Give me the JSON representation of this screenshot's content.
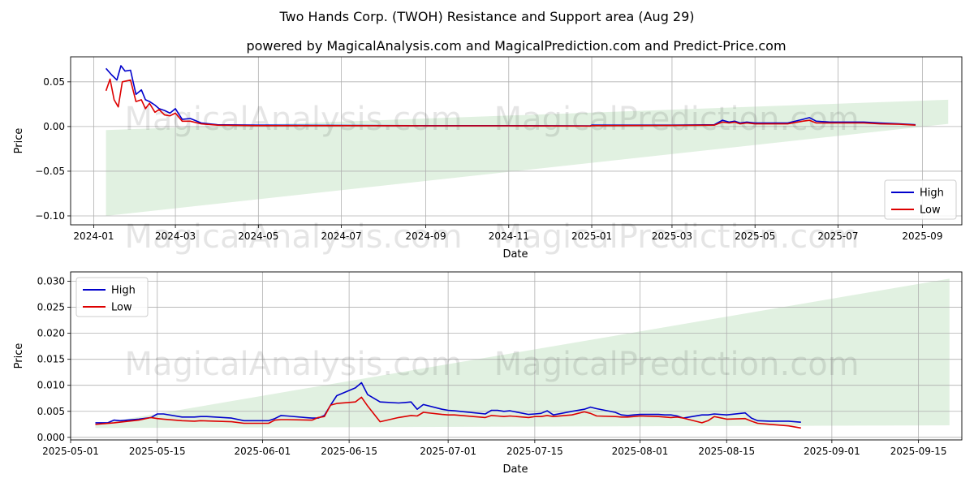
{
  "title": "Two Hands Corp. (TWOH) Resistance and Support area (Aug 29)",
  "subtitle": "powered by MagicalAnalysis.com and MagicalPrediction.com and Predict-Price.com",
  "watermarks": [
    "MagicalAnalysis.com",
    "MagicalPrediction.com"
  ],
  "colors": {
    "high": "#0000cc",
    "low": "#dd0000",
    "band": "#c8e6c9",
    "grid": "#b0b0b0"
  },
  "chart_data": [
    {
      "type": "line",
      "xlabel": "Date",
      "ylabel": "Price",
      "xlim": [
        "2023-12-15",
        "2025-09-30"
      ],
      "ylim": [
        -0.11,
        0.078
      ],
      "x_ticks": [
        "2024-01-01",
        "2024-03-01",
        "2024-05-01",
        "2024-07-01",
        "2024-09-01",
        "2024-11-01",
        "2025-01-01",
        "2025-03-01",
        "2025-05-01",
        "2025-07-01",
        "2025-09-01"
      ],
      "x_tick_labels": [
        "2024-01",
        "2024-03",
        "2024-05",
        "2024-07",
        "2024-09",
        "2024-11",
        "2025-01",
        "2025-03",
        "2025-05",
        "2025-07",
        "2025-09"
      ],
      "y_ticks": [
        -0.1,
        -0.05,
        0.0,
        0.05
      ],
      "y_tick_labels": [
        "−0.10",
        "−0.05",
        "0.00",
        "0.05"
      ],
      "grid": true,
      "legend_position": "bottom-right",
      "band": {
        "x": [
          "2024-01-10",
          "2025-09-20"
        ],
        "upper": [
          -0.004,
          0.03
        ],
        "lower": [
          -0.1,
          0.003
        ]
      },
      "series": [
        {
          "name": "High",
          "x": [
            "2024-01-10",
            "2024-01-14",
            "2024-01-18",
            "2024-01-21",
            "2024-01-24",
            "2024-01-28",
            "2024-02-01",
            "2024-02-05",
            "2024-02-08",
            "2024-02-11",
            "2024-02-15",
            "2024-02-18",
            "2024-02-22",
            "2024-02-26",
            "2024-03-01",
            "2024-03-06",
            "2024-03-12",
            "2024-03-20",
            "2024-04-01",
            "2024-05-01",
            "2024-07-01",
            "2024-09-01",
            "2024-11-01",
            "2024-12-31",
            "2025-01-01",
            "2025-03-01",
            "2025-04-01",
            "2025-04-07",
            "2025-04-12",
            "2025-04-16",
            "2025-04-20",
            "2025-04-25",
            "2025-05-01",
            "2025-05-15",
            "2025-05-25",
            "2025-06-05",
            "2025-06-10",
            "2025-06-15",
            "2025-06-25",
            "2025-07-10",
            "2025-07-20",
            "2025-08-01",
            "2025-08-15",
            "2025-08-27"
          ],
          "values": [
            0.065,
            0.058,
            0.052,
            0.068,
            0.062,
            0.063,
            0.036,
            0.041,
            0.03,
            0.028,
            0.024,
            0.02,
            0.018,
            0.015,
            0.02,
            0.008,
            0.009,
            0.004,
            0.002,
            0.0015,
            0.0012,
            0.001,
            0.001,
            0.0008,
            0.0015,
            0.0015,
            0.002,
            0.007,
            0.005,
            0.006,
            0.004,
            0.005,
            0.004,
            0.004,
            0.004,
            0.008,
            0.01,
            0.006,
            0.005,
            0.005,
            0.005,
            0.004,
            0.003,
            0.002
          ]
        },
        {
          "name": "Low",
          "x": [
            "2024-01-10",
            "2024-01-13",
            "2024-01-16",
            "2024-01-19",
            "2024-01-22",
            "2024-01-28",
            "2024-02-01",
            "2024-02-05",
            "2024-02-08",
            "2024-02-11",
            "2024-02-15",
            "2024-02-18",
            "2024-02-22",
            "2024-02-26",
            "2024-03-01",
            "2024-03-06",
            "2024-03-12",
            "2024-03-20",
            "2024-04-01",
            "2024-05-01",
            "2024-07-01",
            "2024-09-01",
            "2024-11-01",
            "2024-12-31",
            "2025-01-01",
            "2025-03-01",
            "2025-04-01",
            "2025-04-07",
            "2025-04-12",
            "2025-04-16",
            "2025-04-20",
            "2025-04-25",
            "2025-05-01",
            "2025-05-15",
            "2025-05-25",
            "2025-06-05",
            "2025-06-10",
            "2025-06-15",
            "2025-06-25",
            "2025-07-10",
            "2025-07-20",
            "2025-08-01",
            "2025-08-15",
            "2025-08-27"
          ],
          "values": [
            0.04,
            0.053,
            0.03,
            0.022,
            0.05,
            0.052,
            0.028,
            0.03,
            0.02,
            0.026,
            0.016,
            0.019,
            0.013,
            0.012,
            0.015,
            0.006,
            0.006,
            0.003,
            0.0015,
            0.001,
            0.001,
            0.0008,
            0.0008,
            0.0005,
            0.001,
            0.0012,
            0.0015,
            0.005,
            0.004,
            0.005,
            0.003,
            0.004,
            0.003,
            0.003,
            0.003,
            0.006,
            0.007,
            0.004,
            0.004,
            0.004,
            0.004,
            0.003,
            0.0025,
            0.0015
          ]
        }
      ]
    },
    {
      "type": "line",
      "xlabel": "Date",
      "ylabel": "Price",
      "xlim": [
        "2025-05-01",
        "2025-09-22"
      ],
      "ylim": [
        -0.0005,
        0.0318
      ],
      "x_ticks": [
        "2025-05-01",
        "2025-05-15",
        "2025-06-01",
        "2025-06-15",
        "2025-07-01",
        "2025-07-15",
        "2025-08-01",
        "2025-08-15",
        "2025-09-01",
        "2025-09-15"
      ],
      "x_tick_labels": [
        "2025-05-01",
        "2025-05-15",
        "2025-06-01",
        "2025-06-15",
        "2025-07-01",
        "2025-07-15",
        "2025-08-01",
        "2025-08-15",
        "2025-09-01",
        "2025-09-15"
      ],
      "y_ticks": [
        0.0,
        0.005,
        0.01,
        0.015,
        0.02,
        0.025,
        0.03
      ],
      "y_tick_labels": [
        "0.000",
        "0.005",
        "0.010",
        "0.015",
        "0.020",
        "0.025",
        "0.030"
      ],
      "grid": true,
      "legend_position": "top-left",
      "band": {
        "x": [
          "2025-05-05",
          "2025-09-20"
        ],
        "upper": [
          0.0025,
          0.0305
        ],
        "lower": [
          0.0018,
          0.0023
        ]
      },
      "series": [
        {
          "name": "High",
          "x": [
            "2025-05-05",
            "2025-05-06",
            "2025-05-07",
            "2025-05-08",
            "2025-05-09",
            "2025-05-12",
            "2025-05-14",
            "2025-05-15",
            "2025-05-16",
            "2025-05-19",
            "2025-05-21",
            "2025-05-22",
            "2025-05-23",
            "2025-05-27",
            "2025-05-29",
            "2025-05-30",
            "2025-06-02",
            "2025-06-03",
            "2025-06-04",
            "2025-06-05",
            "2025-06-09",
            "2025-06-10",
            "2025-06-11",
            "2025-06-12",
            "2025-06-13",
            "2025-06-16",
            "2025-06-17",
            "2025-06-18",
            "2025-06-20",
            "2025-06-23",
            "2025-06-24",
            "2025-06-25",
            "2025-06-26",
            "2025-06-27",
            "2025-06-30",
            "2025-07-01",
            "2025-07-02",
            "2025-07-07",
            "2025-07-08",
            "2025-07-09",
            "2025-07-10",
            "2025-07-11",
            "2025-07-14",
            "2025-07-15",
            "2025-07-16",
            "2025-07-17",
            "2025-07-18",
            "2025-07-21",
            "2025-07-23",
            "2025-07-24",
            "2025-07-25",
            "2025-07-28",
            "2025-07-29",
            "2025-07-30",
            "2025-07-31",
            "2025-08-01",
            "2025-08-04",
            "2025-08-05",
            "2025-08-06",
            "2025-08-07",
            "2025-08-08",
            "2025-08-11",
            "2025-08-12",
            "2025-08-13",
            "2025-08-15",
            "2025-08-18",
            "2025-08-19",
            "2025-08-20",
            "2025-08-22",
            "2025-08-25",
            "2025-08-27"
          ],
          "values": [
            0.0028,
            0.0028,
            0.0028,
            0.0033,
            0.0032,
            0.0035,
            0.0038,
            0.0045,
            0.0045,
            0.0039,
            0.0039,
            0.004,
            0.004,
            0.0037,
            0.0032,
            0.0032,
            0.0032,
            0.0036,
            0.0042,
            0.0041,
            0.0037,
            0.0037,
            0.0042,
            0.0062,
            0.008,
            0.0095,
            0.0105,
            0.0082,
            0.0068,
            0.0066,
            0.0067,
            0.0068,
            0.0054,
            0.0063,
            0.0054,
            0.0052,
            0.0051,
            0.0045,
            0.0052,
            0.0052,
            0.005,
            0.0051,
            0.0044,
            0.0045,
            0.0046,
            0.0051,
            0.0043,
            0.005,
            0.0054,
            0.0058,
            0.0055,
            0.0048,
            0.0043,
            0.0042,
            0.0043,
            0.0044,
            0.0044,
            0.0043,
            0.0043,
            0.0041,
            0.0037,
            0.0043,
            0.0043,
            0.0045,
            0.0043,
            0.0047,
            0.0037,
            0.0032,
            0.0031,
            0.0031,
            0.0029
          ],
          "plot_fix_note": ""
        },
        {
          "name": "Low",
          "x": [
            "2025-05-05",
            "2025-05-08",
            "2025-05-12",
            "2025-05-14",
            "2025-05-15",
            "2025-05-16",
            "2025-05-19",
            "2025-05-21",
            "2025-05-22",
            "2025-05-27",
            "2025-05-29",
            "2025-05-30",
            "2025-06-02",
            "2025-06-03",
            "2025-06-04",
            "2025-06-05",
            "2025-06-09",
            "2025-06-10",
            "2025-06-11",
            "2025-06-12",
            "2025-06-13",
            "2025-06-16",
            "2025-06-17",
            "2025-06-18",
            "2025-06-20",
            "2025-06-23",
            "2025-06-24",
            "2025-06-25",
            "2025-06-26",
            "2025-06-27",
            "2025-06-30",
            "2025-07-01",
            "2025-07-02",
            "2025-07-07",
            "2025-07-08",
            "2025-07-09",
            "2025-07-10",
            "2025-07-11",
            "2025-07-14",
            "2025-07-15",
            "2025-07-16",
            "2025-07-17",
            "2025-07-18",
            "2025-07-21",
            "2025-07-23",
            "2025-07-24",
            "2025-07-25",
            "2025-07-28",
            "2025-07-29",
            "2025-07-30",
            "2025-07-31",
            "2025-08-01",
            "2025-08-04",
            "2025-08-05",
            "2025-08-06",
            "2025-08-07",
            "2025-08-08",
            "2025-08-11",
            "2025-08-12",
            "2025-08-13",
            "2025-08-15",
            "2025-08-18",
            "2025-08-19",
            "2025-08-20",
            "2025-08-22",
            "2025-08-25",
            "2025-08-27"
          ],
          "values": [
            0.0025,
            0.0028,
            0.0033,
            0.0038,
            0.0036,
            0.0035,
            0.0032,
            0.0031,
            0.0032,
            0.003,
            0.0027,
            0.0027,
            0.0027,
            0.0033,
            0.0034,
            0.0034,
            0.0033,
            0.0038,
            0.004,
            0.0062,
            0.0065,
            0.0068,
            0.0077,
            0.006,
            0.003,
            0.0038,
            0.004,
            0.0042,
            0.0041,
            0.0048,
            0.0044,
            0.0043,
            0.0043,
            0.0038,
            0.0042,
            0.0041,
            0.004,
            0.0041,
            0.0038,
            0.004,
            0.004,
            0.0042,
            0.004,
            0.0043,
            0.0049,
            0.0046,
            0.0041,
            0.004,
            0.0039,
            0.0039,
            0.004,
            0.0041,
            0.004,
            0.0039,
            0.0038,
            0.0039,
            0.0037,
            0.0028,
            0.0032,
            0.004,
            0.0035,
            0.0036,
            0.0031,
            0.0027,
            0.0025,
            0.0022,
            0.0018
          ]
        }
      ]
    }
  ]
}
